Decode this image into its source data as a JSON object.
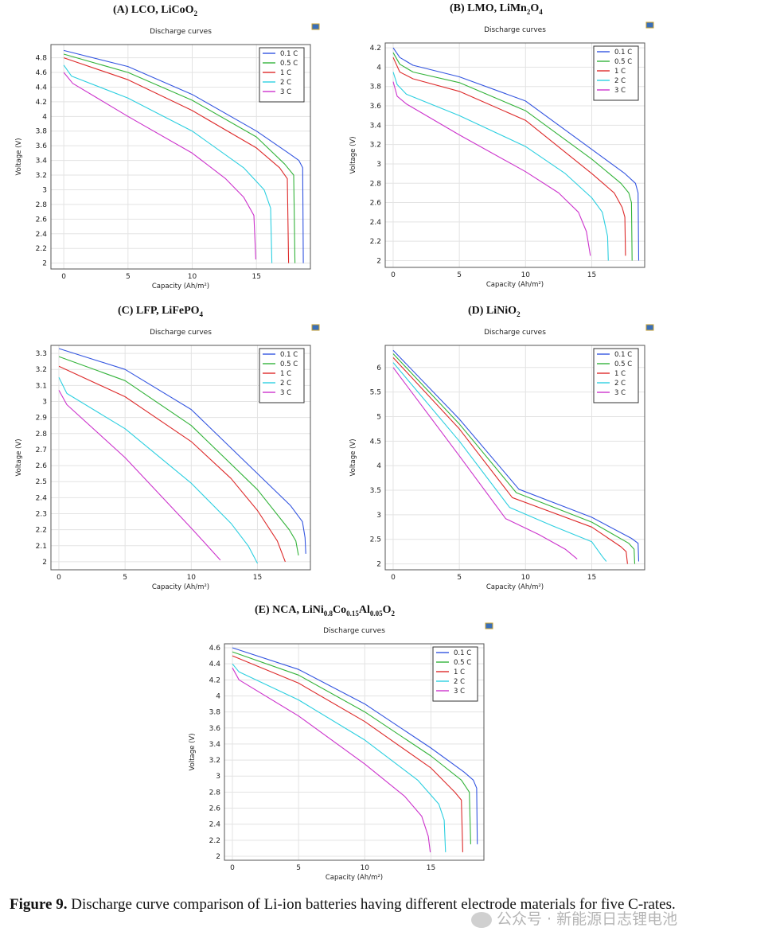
{
  "figure": {
    "caption_label": "Figure 9.",
    "caption_text": "Discharge curve comparison of Li-ion batteries having different electrode materials for five C-rates.",
    "watermark": "公众号 · 新能源日志锂电池"
  },
  "chart_data": [
    {
      "type": "line",
      "panel": "(A) LCO, LiCoO",
      "heading_main": "(A) LCO, LiCoO",
      "heading_sub": "2",
      "title": "Discharge curves",
      "xlabel": "Capacity (Ah/m²)",
      "ylabel": "Voltage (V)",
      "xlim": [
        -1,
        19.2
      ],
      "ylim": [
        1.92,
        4.98
      ],
      "xticks": [
        0,
        5,
        10,
        15
      ],
      "yticks": [
        2,
        2.2,
        2.4,
        2.6,
        2.8,
        3,
        3.2,
        3.4,
        3.6,
        3.8,
        4,
        4.2,
        4.4,
        4.6,
        4.8
      ],
      "legend_position": "top-right",
      "series": [
        {
          "name": "0.1 C",
          "color": "#3355e0",
          "points": [
            [
              0,
              4.9
            ],
            [
              5,
              4.68
            ],
            [
              10,
              4.3
            ],
            [
              15,
              3.8
            ],
            [
              17.5,
              3.5
            ],
            [
              18.3,
              3.4
            ],
            [
              18.6,
              3.3
            ],
            [
              18.65,
              2.0
            ]
          ]
        },
        {
          "name": "0.5 C",
          "color": "#33b33a",
          "points": [
            [
              0,
              4.85
            ],
            [
              5,
              4.6
            ],
            [
              10,
              4.22
            ],
            [
              15,
              3.72
            ],
            [
              17.2,
              3.35
            ],
            [
              17.9,
              3.2
            ],
            [
              18.0,
              2.0
            ]
          ]
        },
        {
          "name": "1 C",
          "color": "#dd2a2a",
          "points": [
            [
              0,
              4.8
            ],
            [
              5,
              4.5
            ],
            [
              10,
              4.08
            ],
            [
              15,
              3.57
            ],
            [
              16.8,
              3.3
            ],
            [
              17.4,
              3.15
            ],
            [
              17.5,
              2.0
            ]
          ]
        },
        {
          "name": "2 C",
          "color": "#2ccfe0",
          "points": [
            [
              0,
              4.7
            ],
            [
              0.6,
              4.55
            ],
            [
              5,
              4.25
            ],
            [
              10,
              3.8
            ],
            [
              14,
              3.3
            ],
            [
              15.6,
              3.0
            ],
            [
              16.1,
              2.75
            ],
            [
              16.2,
              2.0
            ]
          ]
        },
        {
          "name": "3 C",
          "color": "#cc33cc",
          "points": [
            [
              0,
              4.6
            ],
            [
              0.7,
              4.45
            ],
            [
              5,
              4.0
            ],
            [
              10,
              3.5
            ],
            [
              12.6,
              3.15
            ],
            [
              14,
              2.9
            ],
            [
              14.8,
              2.65
            ],
            [
              14.95,
              2.05
            ]
          ]
        }
      ]
    },
    {
      "type": "line",
      "panel": "(B) LMO, LiMn2O4",
      "heading_main": "(B) LMO, LiMn",
      "heading_sub": "2",
      "heading_main2": "O",
      "heading_sub2": "4",
      "title": "Discharge curves",
      "xlabel": "Capacity (Ah/m²)",
      "ylabel": "Voltage (V)",
      "xlim": [
        -0.6,
        19.0
      ],
      "ylim": [
        1.93,
        4.25
      ],
      "xticks": [
        0,
        5,
        10,
        15
      ],
      "yticks": [
        2,
        2.2,
        2.4,
        2.6,
        2.8,
        3,
        3.2,
        3.4,
        3.6,
        3.8,
        4,
        4.2
      ],
      "legend_position": "top-right",
      "series": [
        {
          "name": "0.1 C",
          "color": "#3355e0",
          "points": [
            [
              0,
              4.2
            ],
            [
              0.5,
              4.1
            ],
            [
              1.5,
              4.02
            ],
            [
              5,
              3.9
            ],
            [
              10,
              3.65
            ],
            [
              15,
              3.15
            ],
            [
              17.5,
              2.9
            ],
            [
              18.3,
              2.8
            ],
            [
              18.5,
              2.7
            ],
            [
              18.55,
              2.0
            ]
          ]
        },
        {
          "name": "0.5 C",
          "color": "#33b33a",
          "points": [
            [
              0,
              4.15
            ],
            [
              0.5,
              4.03
            ],
            [
              1.5,
              3.95
            ],
            [
              5,
              3.84
            ],
            [
              10,
              3.55
            ],
            [
              15,
              3.05
            ],
            [
              17.2,
              2.8
            ],
            [
              17.8,
              2.7
            ],
            [
              18.0,
              2.6
            ],
            [
              18.05,
              2.0
            ]
          ]
        },
        {
          "name": "1 C",
          "color": "#dd2a2a",
          "points": [
            [
              0,
              4.1
            ],
            [
              0.5,
              3.95
            ],
            [
              1.5,
              3.88
            ],
            [
              5,
              3.75
            ],
            [
              10,
              3.45
            ],
            [
              15,
              2.9
            ],
            [
              16.7,
              2.7
            ],
            [
              17.3,
              2.55
            ],
            [
              17.5,
              2.45
            ],
            [
              17.55,
              2.05
            ]
          ]
        },
        {
          "name": "2 C",
          "color": "#2ccfe0",
          "points": [
            [
              0,
              3.95
            ],
            [
              0.3,
              3.82
            ],
            [
              1,
              3.72
            ],
            [
              5,
              3.5
            ],
            [
              10,
              3.18
            ],
            [
              13,
              2.9
            ],
            [
              15,
              2.65
            ],
            [
              15.8,
              2.5
            ],
            [
              16.2,
              2.25
            ],
            [
              16.25,
              2.0
            ]
          ]
        },
        {
          "name": "3 C",
          "color": "#cc33cc",
          "points": [
            [
              0,
              3.85
            ],
            [
              0.3,
              3.7
            ],
            [
              1,
              3.62
            ],
            [
              5,
              3.3
            ],
            [
              10,
              2.92
            ],
            [
              12.5,
              2.7
            ],
            [
              14,
              2.5
            ],
            [
              14.6,
              2.3
            ],
            [
              14.9,
              2.05
            ]
          ]
        }
      ]
    },
    {
      "type": "line",
      "panel": "(C) LFP, LiFePO4",
      "heading_main": "(C) LFP, LiFePO",
      "heading_sub": "4",
      "title": "Discharge curves",
      "xlabel": "Capacity (Ah/m²)",
      "ylabel": "Voltage (V)",
      "xlim": [
        -0.6,
        19.0
      ],
      "ylim": [
        1.95,
        3.35
      ],
      "xticks": [
        0,
        5,
        10,
        15
      ],
      "yticks": [
        2,
        2.1,
        2.2,
        2.3,
        2.4,
        2.5,
        2.6,
        2.7,
        2.8,
        2.9,
        3,
        3.1,
        3.2,
        3.3
      ],
      "legend_position": "top-right",
      "series": [
        {
          "name": "0.1 C",
          "color": "#3355e0",
          "points": [
            [
              0,
              3.33
            ],
            [
              5,
              3.2
            ],
            [
              10,
              2.95
            ],
            [
              15,
              2.55
            ],
            [
              17.5,
              2.35
            ],
            [
              18.4,
              2.25
            ],
            [
              18.6,
              2.15
            ],
            [
              18.65,
              2.05
            ]
          ]
        },
        {
          "name": "0.5 C",
          "color": "#33b33a",
          "points": [
            [
              0,
              3.28
            ],
            [
              5,
              3.13
            ],
            [
              10,
              2.85
            ],
            [
              15,
              2.45
            ],
            [
              17.4,
              2.2
            ],
            [
              17.9,
              2.13
            ],
            [
              18.1,
              2.04
            ]
          ]
        },
        {
          "name": "1 C",
          "color": "#dd2a2a",
          "points": [
            [
              0,
              3.22
            ],
            [
              5,
              3.03
            ],
            [
              10,
              2.75
            ],
            [
              13,
              2.52
            ],
            [
              15,
              2.32
            ],
            [
              16.5,
              2.13
            ],
            [
              17.1,
              2.0
            ]
          ]
        },
        {
          "name": "2 C",
          "color": "#2ccfe0",
          "points": [
            [
              0,
              3.15
            ],
            [
              0.6,
              3.05
            ],
            [
              5,
              2.83
            ],
            [
              10,
              2.49
            ],
            [
              13,
              2.24
            ],
            [
              14.3,
              2.1
            ],
            [
              15,
              1.99
            ]
          ]
        },
        {
          "name": "3 C",
          "color": "#cc33cc",
          "points": [
            [
              0,
              3.07
            ],
            [
              0.6,
              2.98
            ],
            [
              5,
              2.65
            ],
            [
              10,
              2.21
            ],
            [
              11,
              2.12
            ],
            [
              12.2,
              2.01
            ]
          ]
        }
      ]
    },
    {
      "type": "line",
      "panel": "(D) LiNiO2",
      "heading_main": "(D) LiNiO",
      "heading_sub": "2",
      "title": "Discharge curves",
      "xlabel": "Capacity (Ah/m²)",
      "ylabel": "Voltage (V)",
      "xlim": [
        -0.6,
        19.0
      ],
      "ylim": [
        1.88,
        6.45
      ],
      "xticks": [
        0,
        5,
        10,
        15
      ],
      "yticks": [
        2,
        2.5,
        3,
        3.5,
        4,
        4.5,
        5,
        5.5,
        6
      ],
      "legend_position": "top-right",
      "series": [
        {
          "name": "0.1 C",
          "color": "#3355e0",
          "points": [
            [
              0,
              6.35
            ],
            [
              5,
              4.95
            ],
            [
              9.5,
              3.52
            ],
            [
              15,
              2.95
            ],
            [
              18,
              2.52
            ],
            [
              18.5,
              2.42
            ],
            [
              18.55,
              2.05
            ]
          ]
        },
        {
          "name": "0.5 C",
          "color": "#33b33a",
          "points": [
            [
              0,
              6.28
            ],
            [
              5,
              4.85
            ],
            [
              9.3,
              3.45
            ],
            [
              15,
              2.85
            ],
            [
              17.8,
              2.42
            ],
            [
              18.2,
              2.3
            ],
            [
              18.25,
              2.0
            ]
          ]
        },
        {
          "name": "1 C",
          "color": "#dd2a2a",
          "points": [
            [
              0,
              6.2
            ],
            [
              5,
              4.75
            ],
            [
              9,
              3.35
            ],
            [
              15,
              2.75
            ],
            [
              17.2,
              2.35
            ],
            [
              17.6,
              2.25
            ],
            [
              17.7,
              2.0
            ]
          ]
        },
        {
          "name": "2 C",
          "color": "#2ccfe0",
          "points": [
            [
              0,
              6.1
            ],
            [
              5,
              4.5
            ],
            [
              8.8,
              3.15
            ],
            [
              12,
              2.78
            ],
            [
              15,
              2.45
            ],
            [
              15.8,
              2.15
            ],
            [
              16.1,
              2.05
            ]
          ]
        },
        {
          "name": "3 C",
          "color": "#cc33cc",
          "points": [
            [
              0,
              6.0
            ],
            [
              5,
              4.2
            ],
            [
              8.5,
              2.92
            ],
            [
              11,
              2.6
            ],
            [
              13,
              2.3
            ],
            [
              13.9,
              2.1
            ]
          ]
        }
      ]
    },
    {
      "type": "line",
      "panel": "(E) NCA, LiNi0.8Co0.15Al0.05O2",
      "heading_main": "(E) NCA, LiNi",
      "heading_sub": "0.8",
      "heading_main2": "Co",
      "heading_sub2": "0.15",
      "heading_main3": "Al",
      "heading_sub3": "0.05",
      "heading_main4": "O",
      "heading_sub4": "2",
      "title": "Discharge curves",
      "xlabel": "Capacity (Ah/m²)",
      "ylabel": "Voltage (V)",
      "xlim": [
        -0.6,
        19.0
      ],
      "ylim": [
        1.95,
        4.65
      ],
      "xticks": [
        0,
        5,
        10,
        15
      ],
      "yticks": [
        2,
        2.2,
        2.4,
        2.6,
        2.8,
        3,
        3.2,
        3.4,
        3.6,
        3.8,
        4,
        4.2,
        4.4,
        4.6
      ],
      "legend_position": "top-right",
      "series": [
        {
          "name": "0.1 C",
          "color": "#3355e0",
          "points": [
            [
              0,
              4.6
            ],
            [
              5,
              4.33
            ],
            [
              10,
              3.9
            ],
            [
              15,
              3.35
            ],
            [
              17.5,
              3.05
            ],
            [
              18.2,
              2.95
            ],
            [
              18.45,
              2.85
            ],
            [
              18.5,
              2.15
            ]
          ]
        },
        {
          "name": "0.5 C",
          "color": "#33b33a",
          "points": [
            [
              0,
              4.55
            ],
            [
              5,
              4.26
            ],
            [
              10,
              3.8
            ],
            [
              15,
              3.25
            ],
            [
              17.3,
              2.95
            ],
            [
              17.9,
              2.8
            ],
            [
              18.0,
              2.15
            ]
          ]
        },
        {
          "name": "1 C",
          "color": "#dd2a2a",
          "points": [
            [
              0,
              4.5
            ],
            [
              5,
              4.16
            ],
            [
              10,
              3.68
            ],
            [
              15,
              3.1
            ],
            [
              16.8,
              2.8
            ],
            [
              17.3,
              2.7
            ],
            [
              17.4,
              2.05
            ]
          ]
        },
        {
          "name": "2 C",
          "color": "#2ccfe0",
          "points": [
            [
              0,
              4.4
            ],
            [
              0.5,
              4.3
            ],
            [
              5,
              3.95
            ],
            [
              10,
              3.45
            ],
            [
              14,
              2.95
            ],
            [
              15.6,
              2.65
            ],
            [
              16.0,
              2.45
            ],
            [
              16.1,
              2.05
            ]
          ]
        },
        {
          "name": "3 C",
          "color": "#cc33cc",
          "points": [
            [
              0,
              4.35
            ],
            [
              0.5,
              4.2
            ],
            [
              5,
              3.75
            ],
            [
              10,
              3.15
            ],
            [
              13,
              2.75
            ],
            [
              14.3,
              2.5
            ],
            [
              14.8,
              2.25
            ],
            [
              14.95,
              2.05
            ]
          ]
        }
      ]
    }
  ]
}
